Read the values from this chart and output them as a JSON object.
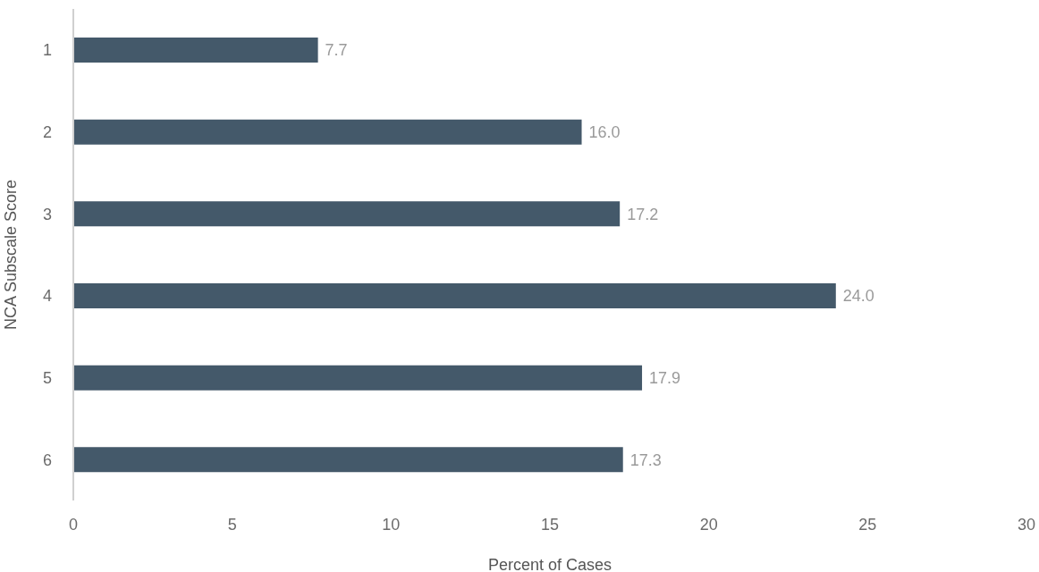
{
  "chart_data": {
    "type": "bar",
    "orientation": "horizontal",
    "xlabel": "Percent of Cases",
    "ylabel": "NCA Subscale Score",
    "categories": [
      "1",
      "2",
      "3",
      "4",
      "5",
      "6"
    ],
    "values": [
      7.7,
      16.0,
      17.2,
      24.0,
      17.9,
      17.3
    ],
    "value_labels": [
      "7.7",
      "16.0",
      "17.2",
      "24.0",
      "17.9",
      "17.3"
    ],
    "color": "#44596a",
    "xlim": [
      0,
      30
    ],
    "xticks": [
      0,
      5,
      10,
      15,
      20,
      25,
      30
    ],
    "grid": false,
    "legend": false
  }
}
